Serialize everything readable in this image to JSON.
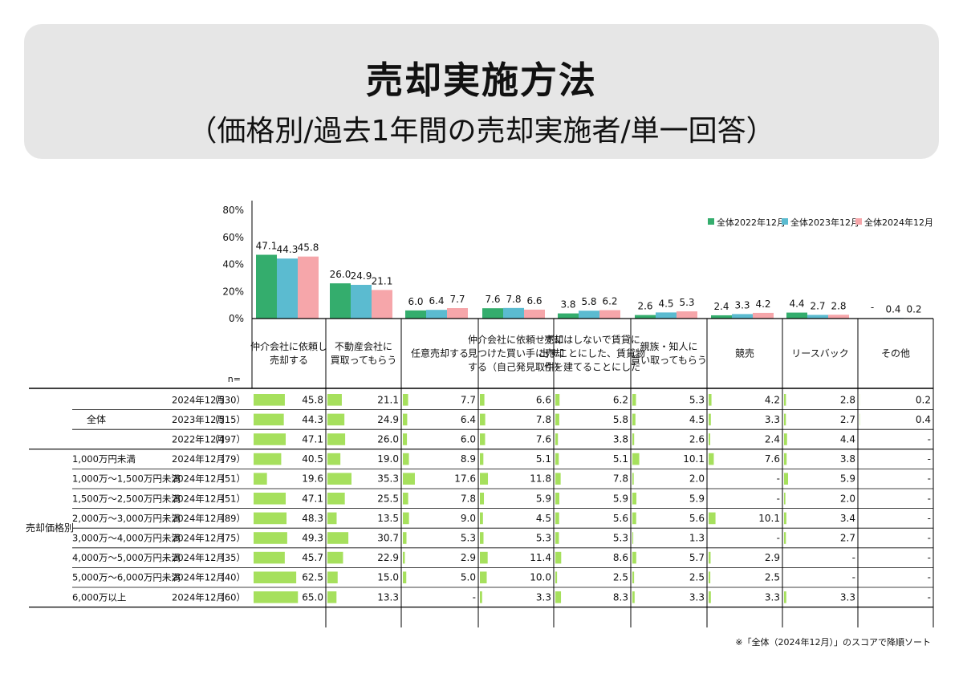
{
  "title": "売却実施方法",
  "subtitle": "（価格別/過去1年間の売却実施者/単一回答）",
  "footnote": "※「全体（2024年12月）」のスコアで降順ソート",
  "colors": {
    "s2022": "#34ad6d",
    "s2023": "#5bbbd0",
    "s2024": "#f6a6aa",
    "table_bar": "#a6e05d",
    "grid": "#000000"
  },
  "chart_data": [
    {
      "type": "bar",
      "ylim": [
        0,
        80
      ],
      "yticks": [
        "80%",
        "60%",
        "40%",
        "20%",
        "0%"
      ],
      "legend_position": "top-right",
      "categories": [
        [
          "仲介会社に依頼し",
          "売却する"
        ],
        [
          "不動産会社に",
          "買取ってもらう"
        ],
        [
          "任意売却する"
        ],
        [
          "仲介会社に依頼せずに",
          "見つけた買い手に売却",
          "する（自己発見取引）"
        ],
        [
          "売却はしないで賃貸に",
          "出すことにした、賃貸物",
          "件を建てることにした"
        ],
        [
          "親族・知人に",
          "買い取ってもらう"
        ],
        [
          "競売"
        ],
        [
          "リースバック"
        ],
        [
          "その他"
        ]
      ],
      "series": [
        {
          "name": "全体2022年12月",
          "values": [
            "47.1",
            "26.0",
            "6.0",
            "7.6",
            "3.8",
            "2.6",
            "2.4",
            "4.4",
            "-"
          ]
        },
        {
          "name": "全体2023年12月",
          "values": [
            "44.3",
            "24.9",
            "6.4",
            "7.8",
            "5.8",
            "4.5",
            "3.3",
            "2.7",
            "0.4"
          ]
        },
        {
          "name": "全体2024年12月",
          "values": [
            "45.8",
            "21.1",
            "7.7",
            "6.6",
            "6.2",
            "5.3",
            "4.2",
            "2.8",
            "0.2"
          ]
        }
      ]
    },
    {
      "type": "table",
      "n_label": "n=",
      "groups": [
        {
          "label": "全体",
          "rows": [
            {
              "sub": "",
              "date": "2024年12月",
              "n": "（530）",
              "values": [
                "45.8",
                "21.1",
                "7.7",
                "6.6",
                "6.2",
                "5.3",
                "4.2",
                "2.8",
                "0.2"
              ]
            },
            {
              "sub": "",
              "date": "2023年12月",
              "n": "（515）",
              "values": [
                "44.3",
                "24.9",
                "6.4",
                "7.8",
                "5.8",
                "4.5",
                "3.3",
                "2.7",
                "0.4"
              ]
            },
            {
              "sub": "",
              "date": "2022年12月",
              "n": "（497）",
              "values": [
                "47.1",
                "26.0",
                "6.0",
                "7.6",
                "3.8",
                "2.6",
                "2.4",
                "4.4",
                "-"
              ]
            }
          ]
        },
        {
          "label": "売却価格別",
          "rows": [
            {
              "sub": "1,000万円未満",
              "date": "2024年12月",
              "n": "（79）",
              "values": [
                "40.5",
                "19.0",
                "8.9",
                "5.1",
                "5.1",
                "10.1",
                "7.6",
                "3.8",
                "-"
              ]
            },
            {
              "sub": "1,000万～1,500万円未満",
              "date": "2024年12月",
              "n": "（51）",
              "values": [
                "19.6",
                "35.3",
                "17.6",
                "11.8",
                "7.8",
                "2.0",
                "-",
                "5.9",
                "-"
              ]
            },
            {
              "sub": "1,500万～2,500万円未満",
              "date": "2024年12月",
              "n": "（51）",
              "values": [
                "47.1",
                "25.5",
                "7.8",
                "5.9",
                "5.9",
                "5.9",
                "-",
                "2.0",
                "-"
              ]
            },
            {
              "sub": "2,000万～3,000万円未満",
              "date": "2024年12月",
              "n": "（89）",
              "values": [
                "48.3",
                "13.5",
                "9.0",
                "4.5",
                "5.6",
                "5.6",
                "10.1",
                "3.4",
                "-"
              ]
            },
            {
              "sub": "3,000万～4,000万円未満",
              "date": "2024年12月",
              "n": "（75）",
              "values": [
                "49.3",
                "30.7",
                "5.3",
                "5.3",
                "5.3",
                "1.3",
                "-",
                "2.7",
                "-"
              ]
            },
            {
              "sub": "4,000万～5,000万円未満",
              "date": "2024年12月",
              "n": "（35）",
              "values": [
                "45.7",
                "22.9",
                "2.9",
                "11.4",
                "8.6",
                "5.7",
                "2.9",
                "-",
                "-"
              ]
            },
            {
              "sub": "5,000万～6,000万円未満",
              "date": "2024年12月",
              "n": "（40）",
              "values": [
                "62.5",
                "15.0",
                "5.0",
                "10.0",
                "2.5",
                "2.5",
                "2.5",
                "-",
                "-"
              ]
            },
            {
              "sub": "6,000万以上",
              "date": "2024年12月",
              "n": "（60）",
              "values": [
                "65.0",
                "13.3",
                "-",
                "3.3",
                "8.3",
                "3.3",
                "3.3",
                "3.3",
                "-"
              ]
            }
          ]
        }
      ]
    }
  ]
}
